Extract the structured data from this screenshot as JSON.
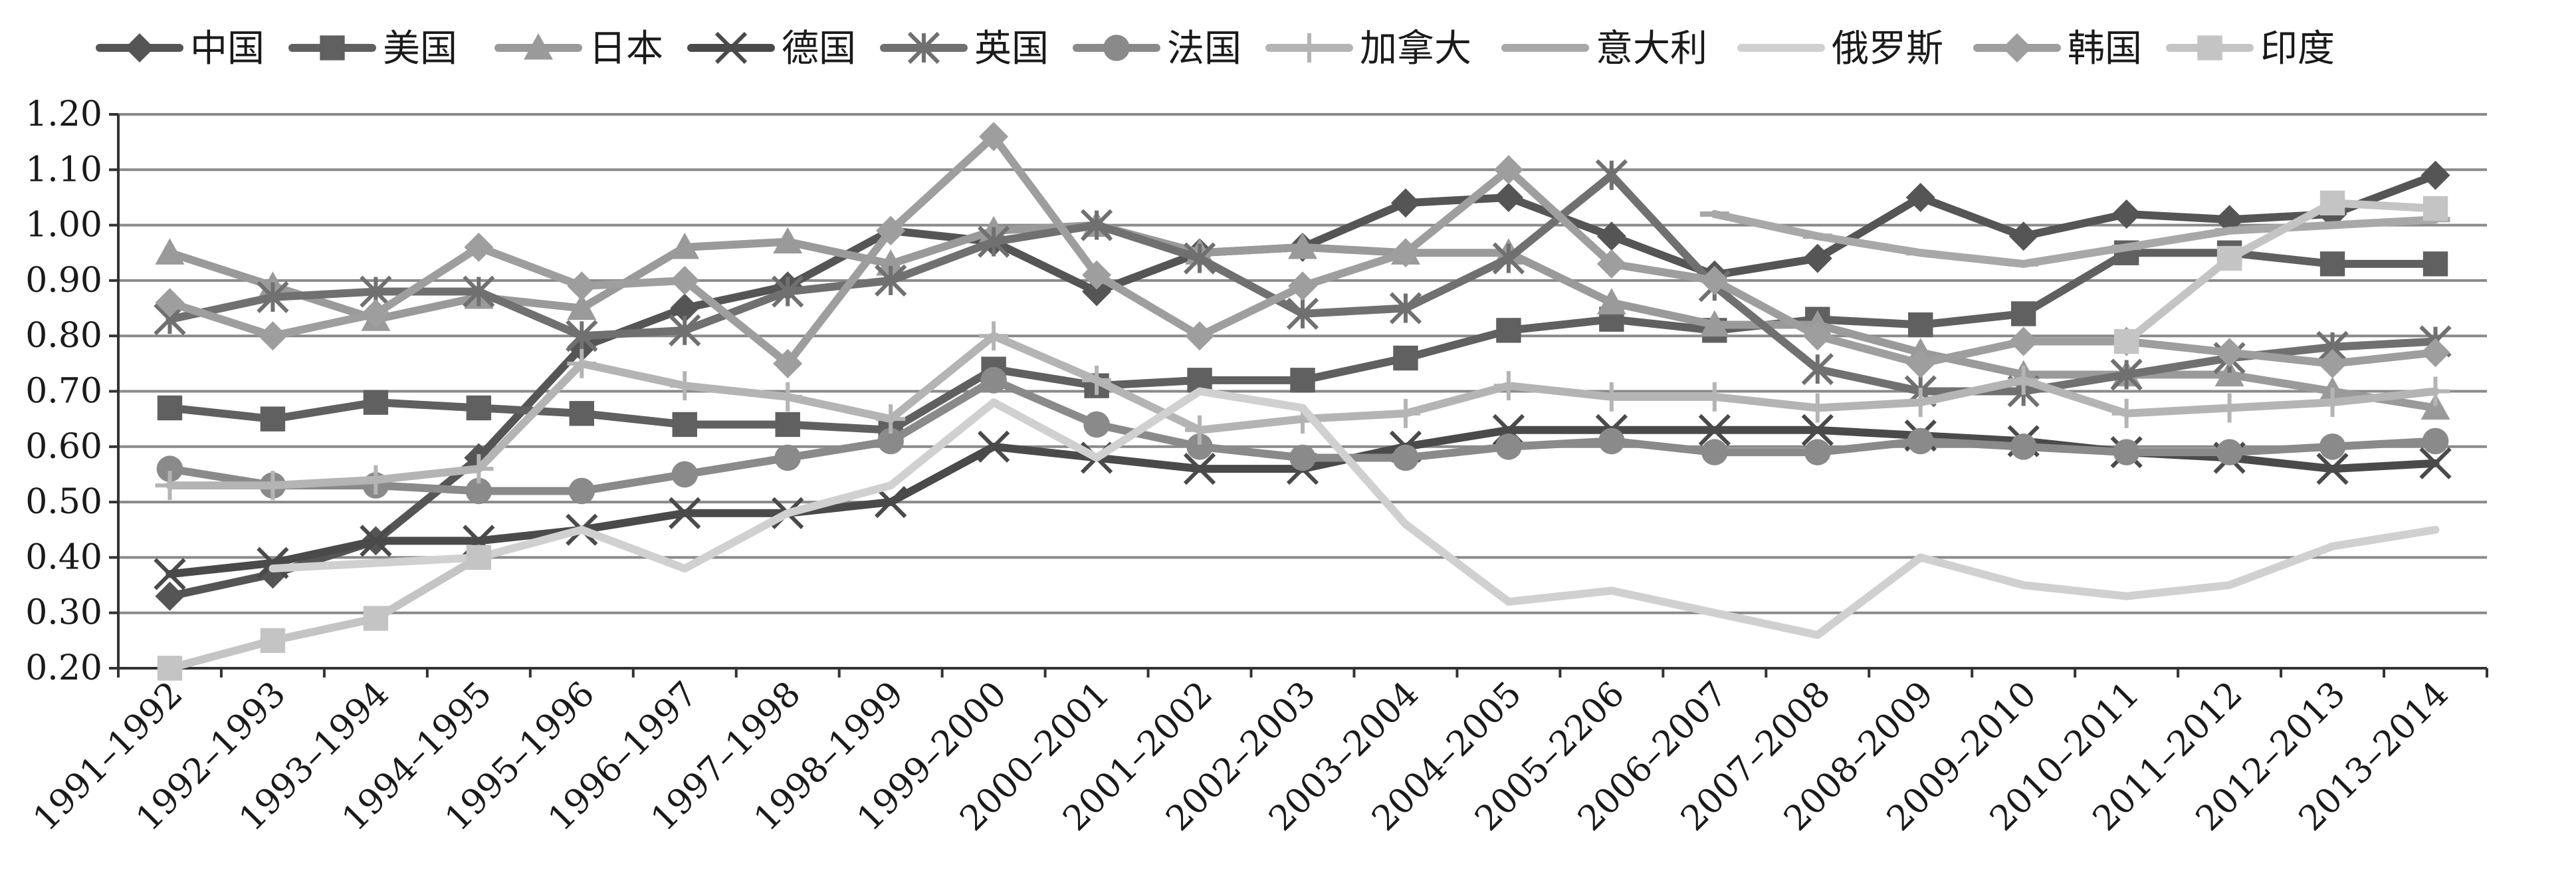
{
  "chart_data": {
    "type": "line",
    "title": "",
    "xlabel": "",
    "ylabel": "",
    "ylim": [
      0.2,
      1.2
    ],
    "yticks": [
      "0.20",
      "0.30",
      "0.40",
      "0.50",
      "0.60",
      "0.70",
      "0.80",
      "0.90",
      "1.00",
      "1.10",
      "1.20"
    ],
    "grid": true,
    "legend_position": "top",
    "categories": [
      "1991–1992",
      "1992–1993",
      "1993–1994",
      "1994–1995",
      "1995–1996",
      "1996–1997",
      "1997–1998",
      "1998–1999",
      "1999–2000",
      "2000–2001",
      "2001–2002",
      "2002–2003",
      "2003–2004",
      "2004–2005",
      "2005–2206",
      "2006–2007",
      "2007–2008",
      "2008–2009",
      "2009–2010",
      "2010–2011",
      "2011–2012",
      "2012–2013",
      "2013–2014"
    ],
    "series": [
      {
        "name": "中国",
        "color": "#555555",
        "marker": "diamond",
        "values": [
          0.33,
          0.37,
          0.43,
          0.58,
          0.78,
          0.85,
          0.89,
          0.99,
          0.97,
          0.88,
          0.95,
          0.96,
          1.04,
          1.05,
          0.98,
          0.91,
          0.94,
          1.05,
          0.98,
          1.02,
          1.01,
          1.02,
          1.09
        ]
      },
      {
        "name": "美国",
        "color": "#606060",
        "marker": "square",
        "values": [
          0.67,
          0.65,
          0.68,
          0.67,
          0.66,
          0.64,
          0.64,
          0.63,
          0.74,
          0.71,
          0.72,
          0.72,
          0.76,
          0.81,
          0.83,
          0.81,
          0.83,
          0.82,
          0.84,
          0.95,
          0.95,
          0.93,
          0.93
        ]
      },
      {
        "name": "日本",
        "color": "#9a9a9a",
        "marker": "triangle",
        "values": [
          0.95,
          0.89,
          0.83,
          0.87,
          0.85,
          0.96,
          0.97,
          0.93,
          0.99,
          1.0,
          0.95,
          0.96,
          0.95,
          0.95,
          0.86,
          0.82,
          0.82,
          0.77,
          0.73,
          0.73,
          0.73,
          0.7,
          0.67
        ]
      },
      {
        "name": "德国",
        "color": "#4a4a4a",
        "marker": "x",
        "values": [
          0.37,
          0.39,
          0.43,
          0.43,
          0.45,
          0.48,
          0.48,
          0.5,
          0.6,
          0.58,
          0.56,
          0.56,
          0.6,
          0.63,
          0.63,
          0.63,
          0.63,
          0.62,
          0.61,
          0.59,
          0.58,
          0.56,
          0.57
        ]
      },
      {
        "name": "英国",
        "color": "#707070",
        "marker": "asterisk",
        "values": [
          0.83,
          0.87,
          0.88,
          0.88,
          0.8,
          0.81,
          0.88,
          0.9,
          0.97,
          1.0,
          0.94,
          0.84,
          0.85,
          0.94,
          1.09,
          0.89,
          0.74,
          0.7,
          0.7,
          0.73,
          0.76,
          0.78,
          0.79
        ]
      },
      {
        "name": "法国",
        "color": "#8a8a8a",
        "marker": "circle",
        "values": [
          0.56,
          0.53,
          0.53,
          0.52,
          0.52,
          0.55,
          0.58,
          0.61,
          0.72,
          0.64,
          0.6,
          0.58,
          0.58,
          0.6,
          0.61,
          0.59,
          0.59,
          0.61,
          0.6,
          0.59,
          0.59,
          0.6,
          0.61
        ]
      },
      {
        "name": "加拿大",
        "color": "#b4b4b4",
        "marker": "plus",
        "values": [
          0.53,
          0.53,
          0.54,
          0.56,
          0.75,
          0.71,
          0.69,
          0.65,
          0.8,
          0.72,
          0.63,
          0.65,
          0.66,
          0.71,
          0.69,
          0.69,
          0.67,
          0.68,
          0.72,
          0.66,
          0.67,
          0.68,
          0.7
        ]
      },
      {
        "name": "意大利",
        "color": "#a8a8a8",
        "marker": "dash",
        "values": [
          null,
          null,
          null,
          null,
          null,
          null,
          null,
          null,
          null,
          null,
          null,
          null,
          null,
          null,
          null,
          1.02,
          0.98,
          0.95,
          0.93,
          0.96,
          0.99,
          1.0,
          1.01
        ]
      },
      {
        "name": "俄罗斯",
        "color": "#d0d0d0",
        "marker": "none",
        "values": [
          null,
          0.38,
          0.39,
          0.4,
          0.45,
          0.38,
          0.48,
          0.53,
          0.68,
          0.58,
          0.7,
          0.67,
          0.46,
          0.32,
          0.34,
          0.3,
          0.26,
          0.4,
          0.35,
          0.33,
          0.35,
          0.42,
          0.45
        ]
      },
      {
        "name": "韩国",
        "color": "#9e9e9e",
        "marker": "diamond",
        "values": [
          0.86,
          0.8,
          0.84,
          0.96,
          0.89,
          0.9,
          0.75,
          0.99,
          1.16,
          0.91,
          0.8,
          0.89,
          0.95,
          1.1,
          0.93,
          0.9,
          0.8,
          0.75,
          0.79,
          0.79,
          0.77,
          0.75,
          0.77
        ]
      },
      {
        "name": "印度",
        "color": "#c4c4c4",
        "marker": "square",
        "values": [
          0.2,
          0.25,
          0.29,
          0.4,
          null,
          null,
          null,
          null,
          null,
          null,
          null,
          null,
          null,
          null,
          null,
          null,
          null,
          null,
          null,
          0.79,
          0.94,
          1.04,
          1.03
        ]
      }
    ]
  }
}
